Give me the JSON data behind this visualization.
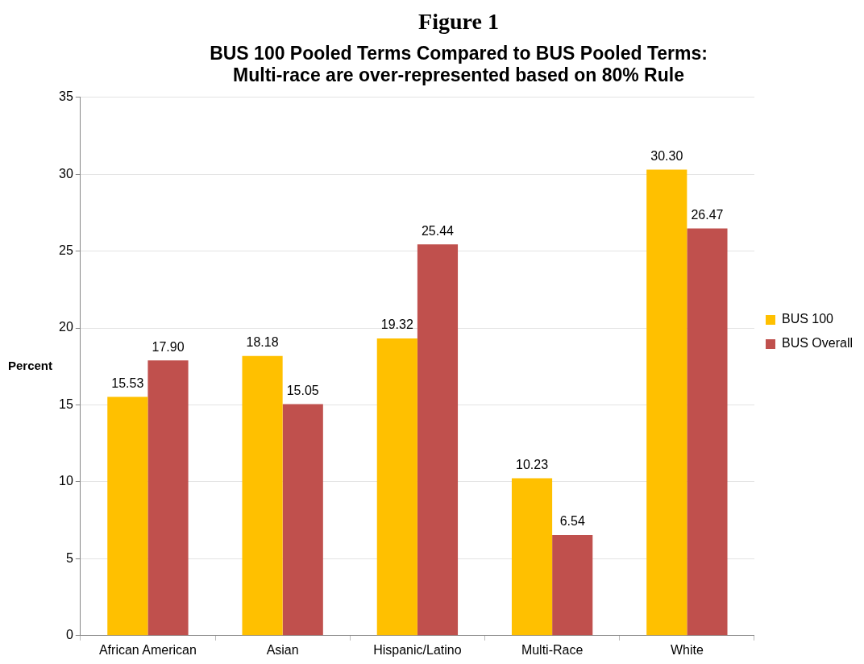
{
  "chart_data": {
    "type": "bar",
    "title": "Figure 1",
    "subtitle": "BUS 100 Pooled Terms Compared to BUS Pooled Terms:\nMulti-race are over-represented based on 80% Rule",
    "ylabel": "Percent",
    "categories": [
      "African American",
      "Asian",
      "Hispanic/Latino",
      "Multi-Race",
      "White"
    ],
    "series": [
      {
        "name": "BUS 100",
        "color": "#ffc000",
        "values": [
          15.53,
          18.18,
          19.32,
          10.23,
          30.3
        ],
        "value_labels": [
          "15.53",
          "18.18",
          "19.32",
          "10.23",
          "30.30"
        ]
      },
      {
        "name": "BUS Overall",
        "color": "#c0504d",
        "values": [
          17.9,
          15.05,
          25.44,
          6.54,
          26.47
        ],
        "value_labels": [
          "17.90",
          "15.05",
          "25.44",
          "6.54",
          "26.47"
        ]
      }
    ],
    "ylim": [
      0,
      35
    ],
    "yticks": [
      0,
      5,
      10,
      15,
      20,
      25,
      30,
      35
    ],
    "grid": "y",
    "legend": "right"
  }
}
